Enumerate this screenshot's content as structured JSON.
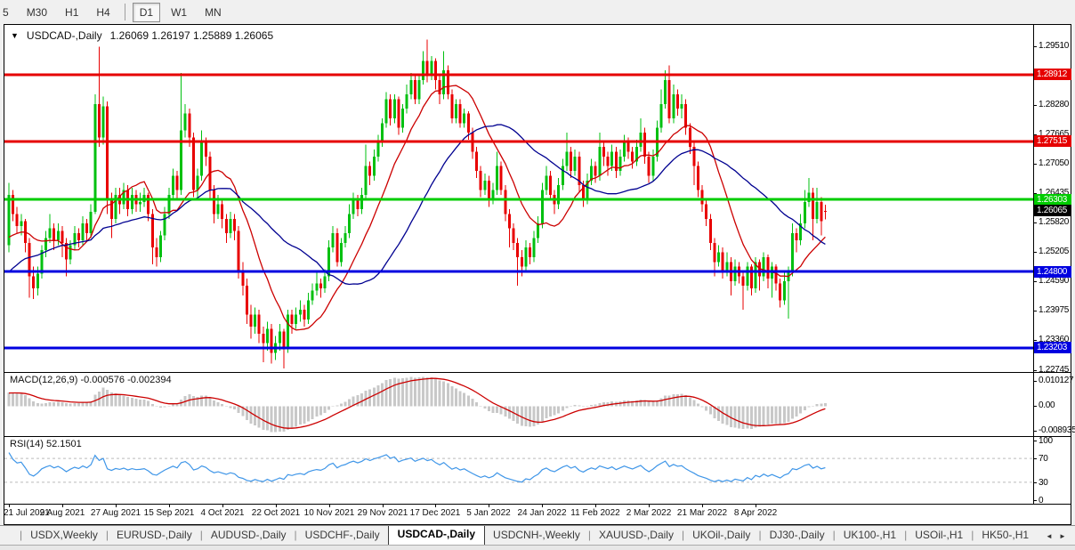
{
  "toolbar": {
    "timeframes": [
      "5",
      "M30",
      "H1",
      "H4",
      "D1",
      "W1",
      "MN"
    ],
    "active": "D1"
  },
  "chart": {
    "dropdown_icon": "▼",
    "title_symbol": "USDCAD-,Daily",
    "title_ohlc": "1.26069 1.26197 1.25889 1.26065",
    "current_price_label": "1.26065",
    "price_axis_ticks": [
      "1.29510",
      "1.28280",
      "1.27665",
      "1.27050",
      "1.26435",
      "1.25820",
      "1.25205",
      "1.24590",
      "1.23975",
      "1.23360",
      "1.22745"
    ],
    "hlines": [
      {
        "price": 1.28912,
        "label": "1.28912",
        "color": "#e60000"
      },
      {
        "price": 1.27515,
        "label": "1.27515",
        "color": "#e60000"
      },
      {
        "price": 1.26303,
        "label": "1.26303",
        "color": "#00cc00"
      },
      {
        "price": 1.248,
        "label": "1.24800",
        "color": "#0000e0"
      },
      {
        "price": 1.23203,
        "label": "1.23203",
        "color": "#0000e0"
      }
    ],
    "date_labels": [
      "21 Jul 2021",
      "9 Aug 2021",
      "27 Aug 2021",
      "15 Sep 2021",
      "4 Oct 2021",
      "22 Oct 2021",
      "10 Nov 2021",
      "29 Nov 2021",
      "17 Dec 2021",
      "5 Jan 2022",
      "24 Jan 2022",
      "11 Feb 2022",
      "2 Mar 2022",
      "21 Mar 2022",
      "8 Apr 2022"
    ]
  },
  "macd": {
    "label": "MACD(12,26,9) -0.000576 -0.002394",
    "axis": [
      "0.010127",
      "0.00",
      "-0.008935"
    ]
  },
  "rsi": {
    "label": "RSI(14) 52.1501",
    "levels": [
      70,
      30
    ],
    "axis": [
      "100",
      "70",
      "30",
      "0"
    ]
  },
  "tabbar": {
    "tabs": [
      "USDX,Weekly",
      "EURUSD-,Daily",
      "AUDUSD-,Daily",
      "USDCHF-,Daily",
      "USDCAD-,Daily",
      "USDCNH-,Weekly",
      "XAUUSD-,Daily",
      "UKOil-,Daily",
      "DJ30-,Daily",
      "UK100-,H1",
      "USOil-,H1",
      "HK50-,H1"
    ],
    "active_index": 4,
    "separator": "|",
    "scroll_left_icon": "◄",
    "scroll_right_icon": "►"
  },
  "colors": {
    "bull": "#00c010",
    "bear": "#e80000",
    "ma_fast": "#cc0000",
    "ma_slow": "#000090",
    "macd_hist": "#c8c8c8",
    "macd_signal": "#cc0000",
    "rsi_line": "#3f96e8",
    "level_dash": "#bbbbbb",
    "badge_current": "#000000"
  },
  "chart_data": {
    "type": "candlestick",
    "symbol": "USDCAD-",
    "timeframe": "Daily",
    "title": "USDCAD-,Daily",
    "ohlc_last": {
      "o": 1.26069,
      "h": 1.26197,
      "l": 1.25889,
      "c": 1.26065
    },
    "price_range": [
      1.227,
      1.2995
    ],
    "x_tick_step": 13,
    "overlays": [
      {
        "name": "ma-fast",
        "type": "sma",
        "period": 13,
        "color": "#cc0000"
      },
      {
        "name": "ma-slow",
        "type": "sma",
        "period": 34,
        "color": "#000090"
      }
    ],
    "indicators": [
      {
        "name": "MACD",
        "params": [
          12,
          26,
          9
        ],
        "display_values": [
          -0.000576,
          -0.002394
        ],
        "axis_max": 0.010127,
        "axis_min": -0.008935
      },
      {
        "name": "RSI",
        "params": [
          14
        ],
        "display_value": 52.1501,
        "levels": [
          70,
          30
        ]
      }
    ],
    "pre_closes": [
      1.231,
      1.2325,
      1.234,
      1.233,
      1.236,
      1.238,
      1.237,
      1.24,
      1.239,
      1.242,
      1.244,
      1.243,
      1.246,
      1.245,
      1.248,
      1.247,
      1.25,
      1.249,
      1.252,
      1.251,
      1.253,
      1.252,
      1.254,
      1.253,
      1.255,
      1.254,
      1.253,
      1.2545,
      1.2535,
      1.255,
      1.2545,
      1.2555,
      1.255,
      1.256
    ],
    "candles": [
      [
        1.2535,
        1.2665,
        1.252,
        1.264
      ],
      [
        1.264,
        1.265,
        1.2585,
        1.26
      ],
      [
        1.26,
        1.2615,
        1.256,
        1.2575
      ],
      [
        1.2575,
        1.26,
        1.2555,
        1.2585
      ],
      [
        1.2585,
        1.259,
        1.252,
        1.254
      ],
      [
        1.254,
        1.255,
        1.2425,
        1.247
      ],
      [
        1.247,
        1.249,
        1.2422,
        1.2445
      ],
      [
        1.2445,
        1.249,
        1.243,
        1.2475
      ],
      [
        1.2475,
        1.2535,
        1.2465,
        1.2525
      ],
      [
        1.2525,
        1.2565,
        1.251,
        1.255
      ],
      [
        1.255,
        1.26,
        1.254,
        1.257
      ],
      [
        1.257,
        1.258,
        1.2525,
        1.2545
      ],
      [
        1.2545,
        1.258,
        1.2535,
        1.2565
      ],
      [
        1.2565,
        1.2575,
        1.251,
        1.254
      ],
      [
        1.254,
        1.255,
        1.247,
        1.2505
      ],
      [
        1.2505,
        1.2545,
        1.2495,
        1.2535
      ],
      [
        1.2535,
        1.2575,
        1.2525,
        1.256
      ],
      [
        1.256,
        1.257,
        1.253,
        1.2545
      ],
      [
        1.2545,
        1.2595,
        1.2535,
        1.258
      ],
      [
        1.258,
        1.259,
        1.2545,
        1.256
      ],
      [
        1.256,
        1.262,
        1.255,
        1.2605
      ],
      [
        1.2605,
        1.285,
        1.26,
        1.283
      ],
      [
        1.283,
        1.2949,
        1.274,
        1.276
      ],
      [
        1.276,
        1.2845,
        1.2745,
        1.2825
      ],
      [
        1.2825,
        1.2835,
        1.26,
        1.263
      ],
      [
        1.263,
        1.2645,
        1.255,
        1.259
      ],
      [
        1.259,
        1.2655,
        1.258,
        1.264
      ],
      [
        1.264,
        1.2655,
        1.26,
        1.262
      ],
      [
        1.262,
        1.2665,
        1.261,
        1.265
      ],
      [
        1.265,
        1.266,
        1.2595,
        1.261
      ],
      [
        1.261,
        1.2655,
        1.26,
        1.264
      ],
      [
        1.264,
        1.265,
        1.2605,
        1.262
      ],
      [
        1.262,
        1.2645,
        1.2605,
        1.2625
      ],
      [
        1.2625,
        1.2655,
        1.2615,
        1.264
      ],
      [
        1.264,
        1.2645,
        1.2585,
        1.26
      ],
      [
        1.26,
        1.261,
        1.2495,
        1.253
      ],
      [
        1.253,
        1.255,
        1.249,
        1.251
      ],
      [
        1.251,
        1.2565,
        1.25,
        1.2555
      ],
      [
        1.2555,
        1.2615,
        1.2545,
        1.26
      ],
      [
        1.26,
        1.2655,
        1.259,
        1.264
      ],
      [
        1.264,
        1.2695,
        1.263,
        1.268
      ],
      [
        1.268,
        1.269,
        1.263,
        1.265
      ],
      [
        1.265,
        1.2895,
        1.264,
        1.2775
      ],
      [
        1.2775,
        1.283,
        1.276,
        1.281
      ],
      [
        1.281,
        1.282,
        1.274,
        1.276
      ],
      [
        1.276,
        1.277,
        1.2635,
        1.265
      ],
      [
        1.265,
        1.2695,
        1.263,
        1.268
      ],
      [
        1.268,
        1.2775,
        1.267,
        1.275
      ],
      [
        1.275,
        1.276,
        1.27,
        1.272
      ],
      [
        1.272,
        1.273,
        1.263,
        1.265
      ],
      [
        1.265,
        1.266,
        1.258,
        1.26
      ],
      [
        1.26,
        1.264,
        1.259,
        1.262
      ],
      [
        1.262,
        1.263,
        1.257,
        1.259
      ],
      [
        1.259,
        1.26,
        1.254,
        1.256
      ],
      [
        1.256,
        1.2605,
        1.255,
        1.259
      ],
      [
        1.259,
        1.26,
        1.2545,
        1.2565
      ],
      [
        1.2565,
        1.2575,
        1.2465,
        1.248
      ],
      [
        1.248,
        1.25,
        1.243,
        1.245
      ],
      [
        1.245,
        1.2465,
        1.237,
        1.239
      ],
      [
        1.239,
        1.241,
        1.234,
        1.2365
      ],
      [
        1.2365,
        1.2405,
        1.235,
        1.239
      ],
      [
        1.239,
        1.24,
        1.233,
        1.235
      ],
      [
        1.235,
        1.2365,
        1.229,
        1.233
      ],
      [
        1.233,
        1.2375,
        1.2315,
        1.236
      ],
      [
        1.236,
        1.237,
        1.2288,
        1.231
      ],
      [
        1.231,
        1.2345,
        1.2295,
        1.233
      ],
      [
        1.233,
        1.237,
        1.2315,
        1.2355
      ],
      [
        1.2355,
        1.236,
        1.2277,
        1.232
      ],
      [
        1.232,
        1.24,
        1.231,
        1.239
      ],
      [
        1.239,
        1.24,
        1.235,
        1.237
      ],
      [
        1.237,
        1.2405,
        1.236,
        1.239
      ],
      [
        1.239,
        1.242,
        1.2375,
        1.24
      ],
      [
        1.24,
        1.241,
        1.2365,
        1.238
      ],
      [
        1.238,
        1.2435,
        1.237,
        1.242
      ],
      [
        1.242,
        1.2455,
        1.241,
        1.244
      ],
      [
        1.244,
        1.248,
        1.243,
        1.2455
      ],
      [
        1.2455,
        1.2465,
        1.2425,
        1.2445
      ],
      [
        1.2445,
        1.2485,
        1.2435,
        1.247
      ],
      [
        1.247,
        1.2545,
        1.246,
        1.253
      ],
      [
        1.253,
        1.2575,
        1.252,
        1.256
      ],
      [
        1.256,
        1.257,
        1.249,
        1.25
      ],
      [
        1.25,
        1.255,
        1.249,
        1.254
      ],
      [
        1.254,
        1.2575,
        1.253,
        1.256
      ],
      [
        1.256,
        1.262,
        1.255,
        1.26
      ],
      [
        1.26,
        1.2645,
        1.259,
        1.263
      ],
      [
        1.263,
        1.264,
        1.2595,
        1.261
      ],
      [
        1.261,
        1.2655,
        1.26,
        1.264
      ],
      [
        1.264,
        1.2745,
        1.263,
        1.27
      ],
      [
        1.27,
        1.271,
        1.266,
        1.268
      ],
      [
        1.268,
        1.2735,
        1.267,
        1.272
      ],
      [
        1.272,
        1.2765,
        1.271,
        1.275
      ],
      [
        1.275,
        1.28,
        1.274,
        1.279
      ],
      [
        1.279,
        1.2855,
        1.278,
        1.284
      ],
      [
        1.284,
        1.285,
        1.2785,
        1.28
      ],
      [
        1.28,
        1.285,
        1.279,
        1.284
      ],
      [
        1.284,
        1.2845,
        1.2765,
        1.278
      ],
      [
        1.278,
        1.283,
        1.277,
        1.282
      ],
      [
        1.282,
        1.287,
        1.281,
        1.285
      ],
      [
        1.285,
        1.2895,
        1.284,
        1.288
      ],
      [
        1.288,
        1.289,
        1.283,
        1.284
      ],
      [
        1.284,
        1.289,
        1.283,
        1.288
      ],
      [
        1.288,
        1.294,
        1.287,
        1.292
      ],
      [
        1.292,
        1.2964,
        1.2875,
        1.289
      ],
      [
        1.289,
        1.293,
        1.288,
        1.292
      ],
      [
        1.292,
        1.2925,
        1.286,
        1.288
      ],
      [
        1.288,
        1.289,
        1.283,
        1.285
      ],
      [
        1.285,
        1.294,
        1.284,
        1.29
      ],
      [
        1.29,
        1.291,
        1.284,
        1.285
      ],
      [
        1.285,
        1.286,
        1.279,
        1.28
      ],
      [
        1.28,
        1.284,
        1.279,
        1.283
      ],
      [
        1.283,
        1.284,
        1.278,
        1.279
      ],
      [
        1.279,
        1.282,
        1.278,
        1.281
      ],
      [
        1.281,
        1.2815,
        1.2755,
        1.277
      ],
      [
        1.277,
        1.278,
        1.2715,
        1.273
      ],
      [
        1.273,
        1.274,
        1.2675,
        1.269
      ],
      [
        1.269,
        1.27,
        1.2635,
        1.265
      ],
      [
        1.265,
        1.2685,
        1.264,
        1.267
      ],
      [
        1.267,
        1.268,
        1.2615,
        1.263
      ],
      [
        1.263,
        1.2665,
        1.262,
        1.265
      ],
      [
        1.265,
        1.273,
        1.264,
        1.27
      ],
      [
        1.27,
        1.271,
        1.264,
        1.265
      ],
      [
        1.265,
        1.266,
        1.2585,
        1.26
      ],
      [
        1.26,
        1.261,
        1.253,
        1.257
      ],
      [
        1.257,
        1.258,
        1.2525,
        1.254
      ],
      [
        1.254,
        1.255,
        1.245,
        1.251
      ],
      [
        1.251,
        1.2525,
        1.247,
        1.249
      ],
      [
        1.249,
        1.2545,
        1.248,
        1.253
      ],
      [
        1.253,
        1.254,
        1.2495,
        1.251
      ],
      [
        1.251,
        1.2565,
        1.25,
        1.255
      ],
      [
        1.255,
        1.2595,
        1.254,
        1.258
      ],
      [
        1.258,
        1.2665,
        1.257,
        1.265
      ],
      [
        1.265,
        1.27,
        1.264,
        1.268
      ],
      [
        1.268,
        1.269,
        1.263,
        1.264
      ],
      [
        1.264,
        1.265,
        1.26,
        1.262
      ],
      [
        1.262,
        1.2675,
        1.261,
        1.266
      ],
      [
        1.266,
        1.2715,
        1.265,
        1.27
      ],
      [
        1.27,
        1.277,
        1.269,
        1.273
      ],
      [
        1.273,
        1.274,
        1.2675,
        1.269
      ],
      [
        1.269,
        1.2735,
        1.268,
        1.272
      ],
      [
        1.272,
        1.273,
        1.2645,
        1.266
      ],
      [
        1.266,
        1.267,
        1.2615,
        1.263
      ],
      [
        1.263,
        1.2685,
        1.262,
        1.267
      ],
      [
        1.267,
        1.2715,
        1.266,
        1.27
      ],
      [
        1.27,
        1.271,
        1.2665,
        1.268
      ],
      [
        1.268,
        1.277,
        1.267,
        1.274
      ],
      [
        1.274,
        1.275,
        1.27,
        1.272
      ],
      [
        1.272,
        1.273,
        1.268,
        1.27
      ],
      [
        1.27,
        1.2745,
        1.269,
        1.273
      ],
      [
        1.273,
        1.274,
        1.2675,
        1.269
      ],
      [
        1.269,
        1.2735,
        1.268,
        1.272
      ],
      [
        1.272,
        1.2765,
        1.271,
        1.275
      ],
      [
        1.275,
        1.276,
        1.2715,
        1.273
      ],
      [
        1.273,
        1.274,
        1.2695,
        1.271
      ],
      [
        1.271,
        1.2755,
        1.27,
        1.274
      ],
      [
        1.274,
        1.28,
        1.273,
        1.277
      ],
      [
        1.277,
        1.278,
        1.2705,
        1.272
      ],
      [
        1.272,
        1.273,
        1.2665,
        1.268
      ],
      [
        1.268,
        1.2735,
        1.267,
        1.272
      ],
      [
        1.272,
        1.2795,
        1.271,
        1.278
      ],
      [
        1.278,
        1.286,
        1.277,
        1.283
      ],
      [
        1.283,
        1.29,
        1.282,
        1.288
      ],
      [
        1.288,
        1.291,
        1.279,
        1.28
      ],
      [
        1.28,
        1.287,
        1.279,
        1.285
      ],
      [
        1.285,
        1.286,
        1.2805,
        1.282
      ],
      [
        1.282,
        1.285,
        1.28,
        1.283
      ],
      [
        1.283,
        1.284,
        1.2765,
        1.278
      ],
      [
        1.278,
        1.279,
        1.2725,
        1.274
      ],
      [
        1.274,
        1.275,
        1.266,
        1.27
      ],
      [
        1.27,
        1.271,
        1.2635,
        1.265
      ],
      [
        1.265,
        1.266,
        1.2605,
        1.262
      ],
      [
        1.262,
        1.263,
        1.2575,
        1.259
      ],
      [
        1.259,
        1.26,
        1.2525,
        1.254
      ],
      [
        1.254,
        1.255,
        1.247,
        1.25
      ],
      [
        1.25,
        1.2535,
        1.249,
        1.252
      ],
      [
        1.252,
        1.253,
        1.2465,
        1.248
      ],
      [
        1.248,
        1.252,
        1.247,
        1.25
      ],
      [
        1.25,
        1.251,
        1.243,
        1.246
      ],
      [
        1.246,
        1.2505,
        1.245,
        1.249
      ],
      [
        1.249,
        1.25,
        1.2455,
        1.247
      ],
      [
        1.247,
        1.248,
        1.24,
        1.245
      ],
      [
        1.245,
        1.25,
        1.244,
        1.249
      ],
      [
        1.249,
        1.2495,
        1.243,
        1.2445
      ],
      [
        1.2445,
        1.251,
        1.2435,
        1.25
      ],
      [
        1.25,
        1.2505,
        1.244,
        1.247
      ],
      [
        1.247,
        1.252,
        1.246,
        1.251
      ],
      [
        1.251,
        1.2515,
        1.2445,
        1.2465
      ],
      [
        1.2465,
        1.25,
        1.2425,
        1.249
      ],
      [
        1.249,
        1.2495,
        1.244,
        1.2455
      ],
      [
        1.2455,
        1.2465,
        1.2405,
        1.242
      ],
      [
        1.242,
        1.248,
        1.241,
        1.246
      ],
      [
        1.246,
        1.249,
        1.2382,
        1.248
      ],
      [
        1.248,
        1.258,
        1.247,
        1.256
      ],
      [
        1.256,
        1.257,
        1.252,
        1.2545
      ],
      [
        1.2545,
        1.26,
        1.2535,
        1.258
      ],
      [
        1.258,
        1.265,
        1.257,
        1.2625
      ],
      [
        1.2625,
        1.2675,
        1.2615,
        1.2645
      ],
      [
        1.2645,
        1.2655,
        1.2545,
        1.259
      ],
      [
        1.259,
        1.2655,
        1.258,
        1.2625
      ],
      [
        1.2625,
        1.2635,
        1.2555,
        1.2585
      ],
      [
        1.26069,
        1.26197,
        1.25889,
        1.26065
      ]
    ]
  }
}
